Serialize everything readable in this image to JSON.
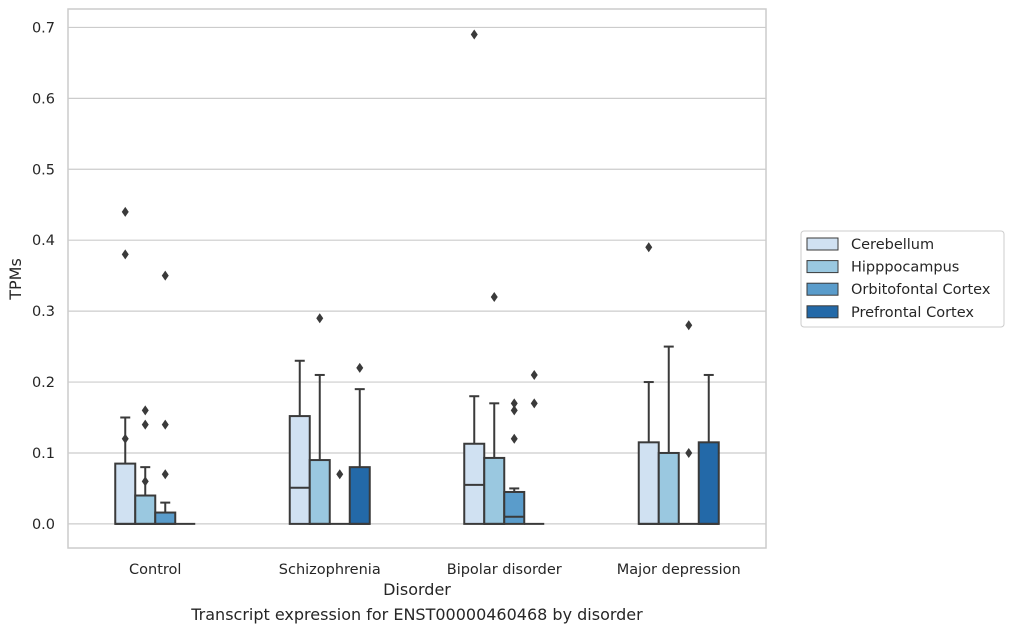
{
  "caption": "Transcript expression for ENST00000460468 by disorder",
  "chart_data": {
    "type": "box",
    "xlabel": "Disorder",
    "ylabel": "TPMs",
    "ylim": [
      -0.034,
      0.726
    ],
    "yticks": [
      0.0,
      0.1,
      0.2,
      0.3,
      0.4,
      0.5,
      0.6,
      0.7
    ],
    "ytick_labels": [
      "0.0",
      "0.1",
      "0.2",
      "0.3",
      "0.4",
      "0.5",
      "0.6",
      "0.7"
    ],
    "grid": true,
    "legend_position": "outside right",
    "categories": [
      "Control",
      "Schizophrenia",
      "Bipolar disorder",
      "Major depression"
    ],
    "series": [
      {
        "name": "Cerebellum",
        "color": "#d0e1f2",
        "boxes": [
          {
            "q1": 0,
            "median": 0,
            "q3": 0.085,
            "whisker_low": 0,
            "whisker_high": 0.15,
            "outliers": [
              0.12,
              0.38,
              0.44
            ]
          },
          {
            "q1": 0,
            "median": 0.051,
            "q3": 0.152,
            "whisker_low": 0,
            "whisker_high": 0.23,
            "outliers": []
          },
          {
            "q1": 0,
            "median": 0.055,
            "q3": 0.113,
            "whisker_low": 0,
            "whisker_high": 0.18,
            "outliers": [
              0.69
            ]
          },
          {
            "q1": 0,
            "median": 0,
            "q3": 0.115,
            "whisker_low": 0,
            "whisker_high": 0.2,
            "outliers": [
              0.39
            ]
          }
        ]
      },
      {
        "name": "Hipppocampus",
        "color": "#9ac8e0",
        "boxes": [
          {
            "q1": 0,
            "median": 0,
            "q3": 0.04,
            "whisker_low": 0,
            "whisker_high": 0.08,
            "outliers": [
              0.06,
              0.14,
              0.16
            ]
          },
          {
            "q1": 0,
            "median": 0,
            "q3": 0.09,
            "whisker_low": 0,
            "whisker_high": 0.21,
            "outliers": [
              0.29
            ]
          },
          {
            "q1": 0,
            "median": 0,
            "q3": 0.093,
            "whisker_low": 0,
            "whisker_high": 0.17,
            "outliers": [
              0.32
            ]
          },
          {
            "q1": 0,
            "median": 0,
            "q3": 0.1,
            "whisker_low": 0,
            "whisker_high": 0.25,
            "outliers": []
          }
        ]
      },
      {
        "name": "Orbitofontal Cortex",
        "color": "#5a9ccb",
        "boxes": [
          {
            "q1": 0,
            "median": 0,
            "q3": 0.016,
            "whisker_low": 0,
            "whisker_high": 0.03,
            "outliers": [
              0.07,
              0.14,
              0.35
            ]
          },
          {
            "q1": 0,
            "median": 0,
            "q3": 0,
            "whisker_low": 0,
            "whisker_high": 0,
            "outliers": [
              0.07
            ]
          },
          {
            "q1": 0,
            "median": 0.01,
            "q3": 0.045,
            "whisker_low": 0,
            "whisker_high": 0.05,
            "outliers": [
              0.12,
              0.16,
              0.17
            ]
          },
          {
            "q1": 0,
            "median": 0,
            "q3": 0,
            "whisker_low": 0,
            "whisker_high": 0,
            "outliers": [
              0.1,
              0.28
            ]
          }
        ]
      },
      {
        "name": "Prefrontal Cortex",
        "color": "#2369a8",
        "boxes": [
          {
            "q1": 0,
            "median": 0,
            "q3": 0,
            "whisker_low": 0,
            "whisker_high": 0,
            "outliers": []
          },
          {
            "q1": 0,
            "median": 0,
            "q3": 0.08,
            "whisker_low": 0,
            "whisker_high": 0.19,
            "outliers": [
              0.22
            ]
          },
          {
            "q1": 0,
            "median": 0,
            "q3": 0,
            "whisker_low": 0,
            "whisker_high": 0,
            "outliers": [
              0.17,
              0.21
            ]
          },
          {
            "q1": 0,
            "median": 0,
            "q3": 0.115,
            "whisker_low": 0,
            "whisker_high": 0.21,
            "outliers": []
          }
        ]
      }
    ]
  }
}
